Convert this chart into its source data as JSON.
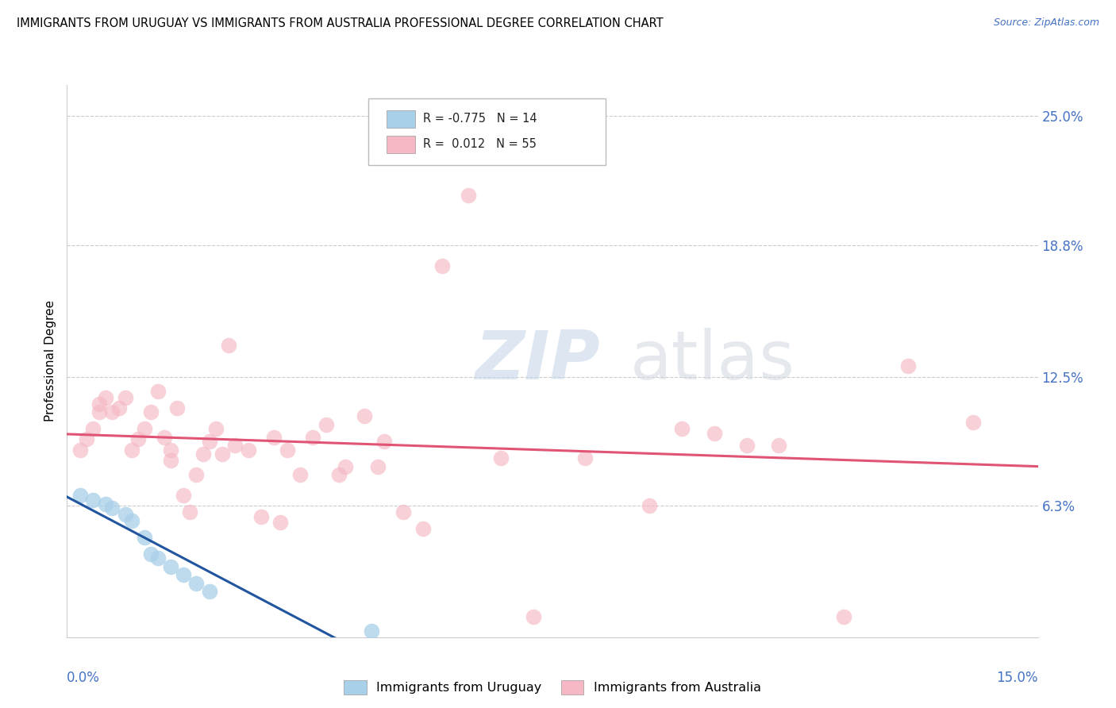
{
  "title": "IMMIGRANTS FROM URUGUAY VS IMMIGRANTS FROM AUSTRALIA PROFESSIONAL DEGREE CORRELATION CHART",
  "source": "Source: ZipAtlas.com",
  "ylabel": "Professional Degree",
  "ytick_labels": [
    "25.0%",
    "18.8%",
    "12.5%",
    "6.3%"
  ],
  "ytick_values": [
    0.25,
    0.188,
    0.125,
    0.063
  ],
  "xmin": 0.0,
  "xmax": 0.15,
  "ymin": 0.0,
  "ymax": 0.265,
  "color_uruguay": "#A8D0E8",
  "color_australia": "#F5B8C4",
  "line_color_uruguay": "#2255A0",
  "line_color_australia": "#E05575",
  "watermark_zip": "ZIP",
  "watermark_atlas": "atlas",
  "uruguay_x": [
    0.002,
    0.004,
    0.006,
    0.007,
    0.009,
    0.01,
    0.012,
    0.013,
    0.014,
    0.016,
    0.018,
    0.02,
    0.022,
    0.047
  ],
  "uruguay_y": [
    0.068,
    0.066,
    0.064,
    0.062,
    0.059,
    0.056,
    0.048,
    0.04,
    0.038,
    0.034,
    0.03,
    0.026,
    0.022,
    0.003
  ],
  "australia_x": [
    0.002,
    0.003,
    0.004,
    0.005,
    0.005,
    0.006,
    0.007,
    0.008,
    0.009,
    0.01,
    0.011,
    0.012,
    0.013,
    0.014,
    0.015,
    0.016,
    0.016,
    0.017,
    0.018,
    0.019,
    0.02,
    0.021,
    0.022,
    0.023,
    0.024,
    0.025,
    0.026,
    0.028,
    0.03,
    0.032,
    0.034,
    0.036,
    0.04,
    0.043,
    0.046,
    0.049,
    0.052,
    0.058,
    0.062,
    0.067,
    0.072,
    0.08,
    0.09,
    0.095,
    0.1,
    0.105,
    0.11,
    0.12,
    0.13,
    0.14,
    0.042,
    0.033,
    0.038,
    0.048,
    0.055
  ],
  "australia_y": [
    0.09,
    0.095,
    0.1,
    0.108,
    0.112,
    0.115,
    0.108,
    0.11,
    0.115,
    0.09,
    0.095,
    0.1,
    0.108,
    0.118,
    0.096,
    0.09,
    0.085,
    0.11,
    0.068,
    0.06,
    0.078,
    0.088,
    0.094,
    0.1,
    0.088,
    0.14,
    0.092,
    0.09,
    0.058,
    0.096,
    0.09,
    0.078,
    0.102,
    0.082,
    0.106,
    0.094,
    0.06,
    0.178,
    0.212,
    0.086,
    0.01,
    0.086,
    0.063,
    0.1,
    0.098,
    0.092,
    0.092,
    0.01,
    0.13,
    0.103,
    0.078,
    0.055,
    0.096,
    0.082,
    0.052
  ]
}
